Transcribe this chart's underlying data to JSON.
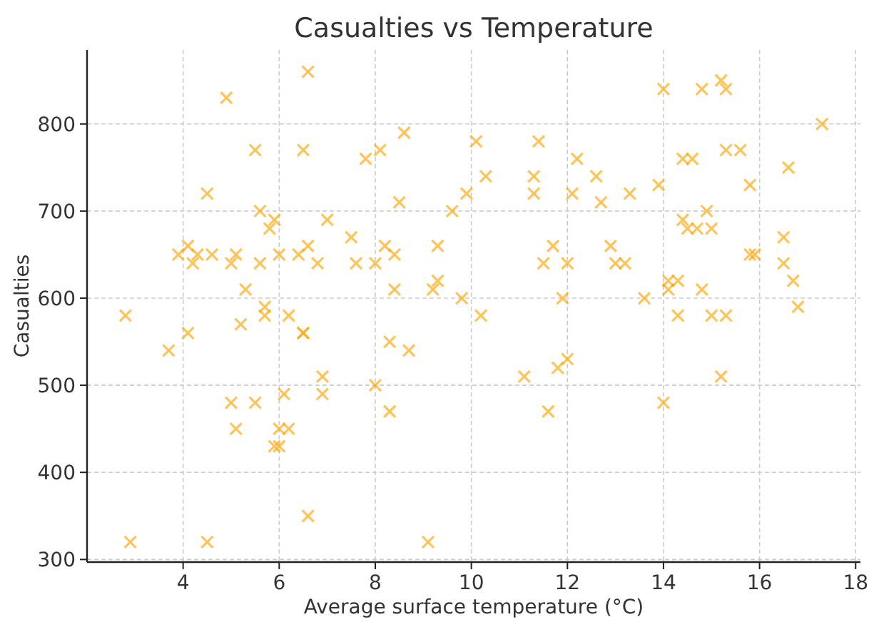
{
  "chart_data": {
    "type": "scatter",
    "title": "Casualties vs Temperature",
    "xlabel": "Average surface temperature (°C)",
    "ylabel": "Casualties",
    "xlim": [
      2.0,
      18.1
    ],
    "ylim": [
      297,
      885
    ],
    "xticks": [
      4,
      6,
      8,
      10,
      12,
      14,
      16,
      18
    ],
    "yticks": [
      300,
      400,
      500,
      600,
      700,
      800
    ],
    "grid": true,
    "marker": "cross",
    "color": "#ffa500",
    "x": [
      2.8,
      2.9,
      3.7,
      3.9,
      4.1,
      4.1,
      4.2,
      4.3,
      4.5,
      4.5,
      4.6,
      4.9,
      5.0,
      5.0,
      5.1,
      5.1,
      5.2,
      5.3,
      5.5,
      5.5,
      5.6,
      5.6,
      5.7,
      5.7,
      5.8,
      5.9,
      5.9,
      6.0,
      6.0,
      6.0,
      6.1,
      6.2,
      6.2,
      6.4,
      6.5,
      6.5,
      6.5,
      6.6,
      6.6,
      6.6,
      6.8,
      6.9,
      6.9,
      7.0,
      7.5,
      7.6,
      7.8,
      8.0,
      8.0,
      8.1,
      8.2,
      8.3,
      8.3,
      8.4,
      8.4,
      8.5,
      8.6,
      8.7,
      9.1,
      9.2,
      9.3,
      9.3,
      9.6,
      9.8,
      9.9,
      10.1,
      10.2,
      10.3,
      11.1,
      11.3,
      11.3,
      11.4,
      11.5,
      11.6,
      11.7,
      11.8,
      11.9,
      12.0,
      12.0,
      12.1,
      12.2,
      12.6,
      12.7,
      12.9,
      13.0,
      13.2,
      13.3,
      13.6,
      13.9,
      14.0,
      14.0,
      14.1,
      14.1,
      14.3,
      14.3,
      14.4,
      14.4,
      14.5,
      14.6,
      14.7,
      14.8,
      14.8,
      14.9,
      15.0,
      15.0,
      15.2,
      15.2,
      15.3,
      15.3,
      15.3,
      15.6,
      15.8,
      15.8,
      15.9,
      16.5,
      16.5,
      16.6,
      16.7,
      16.8,
      17.3
    ],
    "values": [
      580,
      320,
      540,
      650,
      660,
      560,
      640,
      650,
      720,
      320,
      650,
      830,
      640,
      480,
      450,
      650,
      570,
      610,
      770,
      480,
      700,
      640,
      590,
      580,
      680,
      430,
      690,
      650,
      450,
      430,
      490,
      580,
      450,
      650,
      770,
      560,
      560,
      860,
      350,
      660,
      640,
      510,
      490,
      690,
      670,
      640,
      760,
      500,
      640,
      770,
      660,
      550,
      470,
      650,
      610,
      710,
      790,
      540,
      320,
      610,
      620,
      660,
      700,
      600,
      720,
      780,
      580,
      740,
      510,
      740,
      720,
      780,
      640,
      470,
      660,
      520,
      600,
      640,
      530,
      720,
      760,
      740,
      710,
      660,
      640,
      640,
      720,
      600,
      730,
      840,
      480,
      610,
      620,
      620,
      580,
      690,
      760,
      680,
      760,
      680,
      610,
      840,
      700,
      580,
      680,
      850,
      510,
      770,
      840,
      580,
      770,
      730,
      650,
      650,
      640,
      670,
      750,
      620,
      590,
      800
    ]
  }
}
